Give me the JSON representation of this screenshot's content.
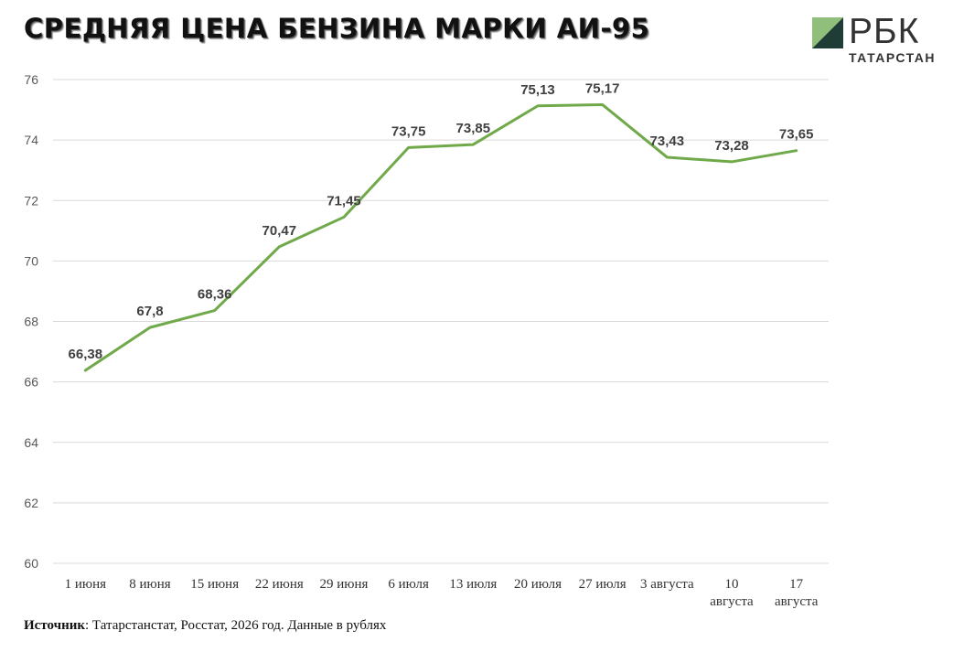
{
  "header": {
    "title": "СРЕДНЯЯ ЦЕНА БЕНЗИНА МАРКИ АИ-95"
  },
  "logo": {
    "name": "РБК",
    "subtitle": "ТАТАРСТАН",
    "colors": {
      "dark": "#1f3d36",
      "light": "#8fbf7a"
    }
  },
  "footer": {
    "source_label": "Источник",
    "source_text": ": Татарстанстат, Росстат, 2026 год. Данные в рублях"
  },
  "chart_data": {
    "type": "line",
    "title": "",
    "xlabel": "",
    "ylabel": "",
    "categories": [
      "1 июня",
      "8 июня",
      "15 июня",
      "22 июня",
      "29 июня",
      "6 июля",
      "13 июля",
      "20 июля",
      "27 июля",
      "3 августа",
      "10 августа",
      "17 августа"
    ],
    "series": [
      {
        "name": "",
        "values": [
          66.38,
          67.8,
          68.36,
          70.47,
          71.45,
          73.75,
          73.85,
          75.13,
          75.17,
          73.43,
          73.28,
          73.65
        ],
        "labels": [
          "66,38",
          "67,8",
          "68,36",
          "70,47",
          "71,45",
          "73,75",
          "73,85",
          "75,13",
          "75,17",
          "73,43",
          "73,28",
          "73,65"
        ],
        "color": "#70a94a"
      }
    ],
    "ylim": [
      60,
      76
    ],
    "yticks": [
      60,
      62,
      64,
      66,
      68,
      70,
      72,
      74,
      76
    ],
    "grid": true,
    "legend": "none"
  }
}
